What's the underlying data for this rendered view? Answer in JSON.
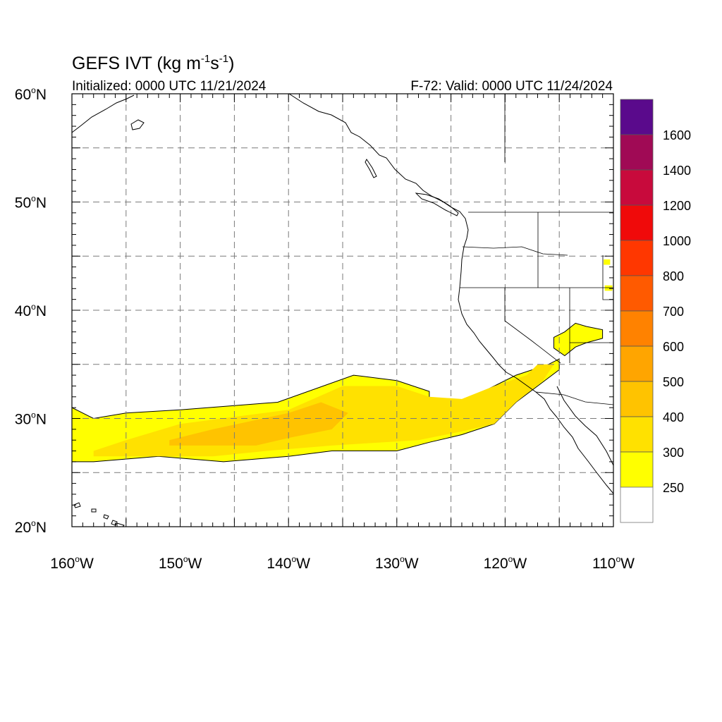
{
  "title": {
    "prefix": "GEFS IVT (kg m",
    "exp1": "-1",
    "mid": "s",
    "exp2": "-1",
    "suffix": ")"
  },
  "init_label": "Initialized: 0000 UTC 11/21/2024",
  "valid_label": "F-72: Valid: 0000 UTC 11/24/2024",
  "lat_labels": [
    {
      "deg": "60",
      "hem": "N"
    },
    {
      "deg": "50",
      "hem": "N"
    },
    {
      "deg": "40",
      "hem": "N"
    },
    {
      "deg": "30",
      "hem": "N"
    },
    {
      "deg": "20",
      "hem": "N"
    }
  ],
  "lon_labels": [
    {
      "deg": "160",
      "hem": "W"
    },
    {
      "deg": "150",
      "hem": "W"
    },
    {
      "deg": "140",
      "hem": "W"
    },
    {
      "deg": "130",
      "hem": "W"
    },
    {
      "deg": "120",
      "hem": "W"
    },
    {
      "deg": "110",
      "hem": "W"
    }
  ],
  "colorbar": {
    "bins": [
      {
        "lo": 250,
        "color": "#ffff00"
      },
      {
        "lo": 300,
        "color": "#ffe100"
      },
      {
        "lo": 400,
        "color": "#ffc300"
      },
      {
        "lo": 500,
        "color": "#ffa500"
      },
      {
        "lo": 600,
        "color": "#ff8200"
      },
      {
        "lo": 700,
        "color": "#ff5a00"
      },
      {
        "lo": 800,
        "color": "#ff3700"
      },
      {
        "lo": 1000,
        "color": "#f00a0a"
      },
      {
        "lo": 1200,
        "color": "#c80a3c"
      },
      {
        "lo": 1400,
        "color": "#a00a55"
      },
      {
        "lo": 1600,
        "color": "#5a0a8c"
      }
    ],
    "labels": [
      "1600",
      "1400",
      "1200",
      "1000",
      "800",
      "700",
      "600",
      "500",
      "400",
      "300",
      "250"
    ]
  },
  "map_extent": {
    "lon_min": -160,
    "lon_max": -110,
    "lat_min": 20,
    "lat_max": 60,
    "gridlines": "dashed",
    "grid_step_deg": 5
  },
  "ivt_regions": [
    {
      "level": "250-300",
      "color": "#ffff00",
      "lon": [
        -160,
        -160,
        -158,
        -155,
        -150,
        -141,
        -134,
        -130,
        -127,
        -127,
        -125,
        -123,
        -121,
        -119,
        -116,
        -115,
        -115,
        -117,
        -119,
        -121,
        -124,
        -127,
        -130,
        -136,
        -140,
        -146,
        -152,
        -158,
        -160
      ],
      "lat": [
        27,
        31,
        30,
        30.5,
        30.8,
        31.5,
        34,
        33.5,
        32.5,
        31.5,
        31.5,
        32,
        33,
        34,
        35,
        35.5,
        34.5,
        33,
        31.5,
        29.5,
        28.5,
        27.8,
        27,
        27,
        26.5,
        26,
        26.5,
        26,
        26
      ]
    },
    {
      "level": "250-300",
      "color": "#ffff00",
      "lon": [
        -115.5,
        -114.5,
        -113.5,
        -112.5,
        -111,
        -111,
        -112.5,
        -113.5,
        -114.5,
        -115.5
      ],
      "lat": [
        37.5,
        38,
        38.8,
        38.5,
        38.2,
        37.4,
        37,
        36.6,
        35.8,
        36.5
      ]
    },
    {
      "level": "300-400",
      "color": "#ffe100",
      "lon": [
        -158,
        -155,
        -150,
        -140,
        -135,
        -130,
        -127,
        -124,
        -121,
        -118,
        -117,
        -115.5,
        -116.5,
        -119,
        -121,
        -124,
        -128,
        -136,
        -142,
        -147,
        -152,
        -158
      ],
      "lat": [
        27,
        28,
        29.5,
        30.8,
        33,
        33,
        32,
        31.8,
        33,
        34,
        35,
        35,
        33.5,
        31.5,
        29.5,
        28.8,
        28,
        27.5,
        27,
        26.5,
        26.5,
        26.5
      ]
    },
    {
      "level": "400-500",
      "color": "#ffc300",
      "lon": [
        -151,
        -147,
        -140,
        -137,
        -134.5,
        -136,
        -140,
        -143,
        -148,
        -151
      ],
      "lat": [
        28,
        29,
        30.5,
        31.5,
        30.5,
        29,
        28.2,
        27.5,
        27.5,
        27.5
      ]
    },
    {
      "level": "250-300",
      "color": "#ffff00",
      "lon": [
        -110.9,
        -110.3,
        -110.3,
        -110.9
      ],
      "lat": [
        44.2,
        44.2,
        44.7,
        44.7
      ]
    },
    {
      "level": "250-300",
      "color": "#ffff00",
      "lon": [
        -110.8,
        -110.1,
        -110.1,
        -110.8
      ],
      "lat": [
        41.8,
        41.8,
        42.3,
        42.3
      ]
    }
  ]
}
